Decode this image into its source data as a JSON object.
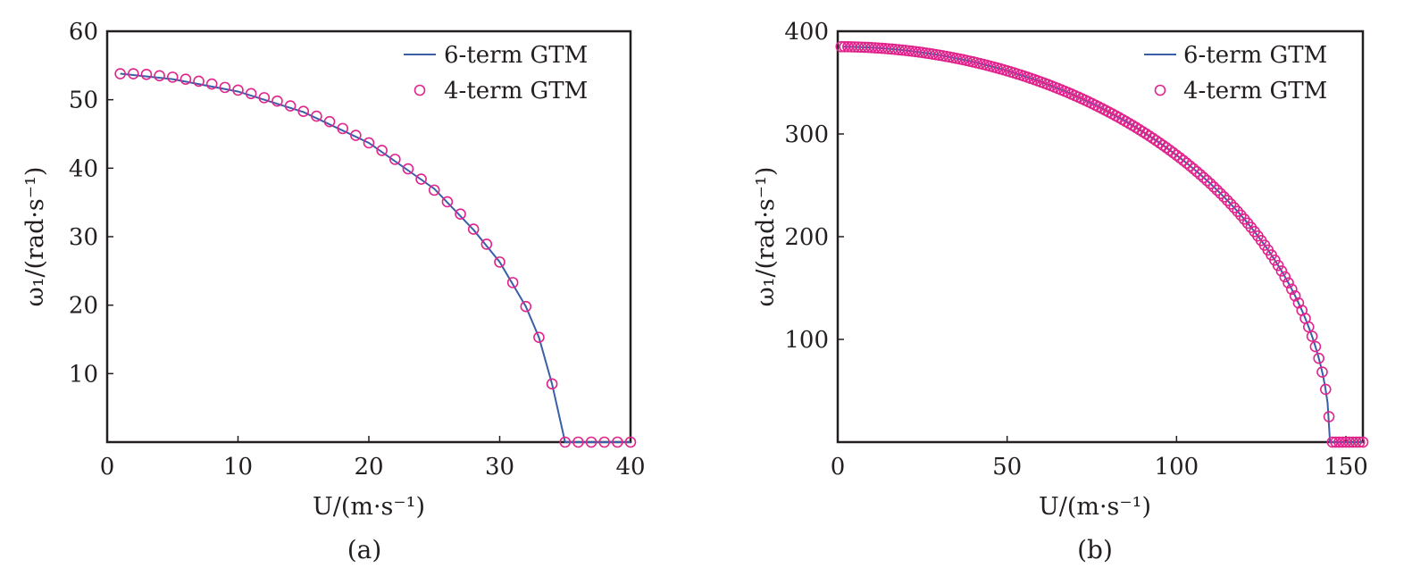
{
  "chart_data": [
    {
      "id": "a",
      "type": "line",
      "caption": "(a)",
      "xlabel": "U/(m·s⁻¹)",
      "ylabel": "ω₁/(rad·s⁻¹)",
      "xlim": [
        0,
        40
      ],
      "ylim": [
        0,
        60
      ],
      "xticks": [
        0,
        10,
        20,
        30,
        40
      ],
      "yticks": [
        10,
        20,
        30,
        40,
        50,
        60
      ],
      "legend_position": "top-right",
      "series": [
        {
          "name": "6-term GTM",
          "style": "line",
          "color": "#3a5fa8",
          "x": [
            1,
            5,
            10,
            15,
            20,
            25,
            28,
            30,
            32,
            33,
            34,
            35,
            40
          ],
          "y": [
            53.8,
            53.0,
            51.2,
            48.2,
            43.7,
            37.0,
            31.0,
            26.3,
            19.8,
            15.3,
            8.5,
            0,
            0
          ]
        },
        {
          "name": "4-term GTM",
          "style": "markers",
          "color": "#e0248c",
          "x": [
            1,
            2,
            3,
            4,
            5,
            6,
            7,
            8,
            9,
            10,
            11,
            12,
            13,
            14,
            15,
            16,
            17,
            18,
            19,
            20,
            21,
            22,
            23,
            24,
            25,
            26,
            27,
            28,
            29,
            30,
            31,
            32,
            33,
            34,
            35,
            36,
            37,
            38,
            39,
            40
          ],
          "y": [
            53.8,
            53.8,
            53.7,
            53.5,
            53.3,
            53.0,
            52.7,
            52.3,
            51.8,
            51.4,
            50.9,
            50.3,
            49.8,
            49.1,
            48.3,
            47.6,
            46.8,
            45.8,
            44.8,
            43.7,
            42.6,
            41.3,
            39.9,
            38.4,
            36.8,
            35.1,
            33.3,
            31.1,
            28.9,
            26.3,
            23.3,
            19.8,
            15.3,
            8.5,
            0,
            0,
            0,
            0,
            0,
            0
          ]
        }
      ]
    },
    {
      "id": "b",
      "type": "line",
      "caption": "(b)",
      "xlabel": "U/(m·s⁻¹)",
      "ylabel": "ω₁/(rad·s⁻¹)",
      "xlim": [
        0,
        155
      ],
      "ylim": [
        0,
        400
      ],
      "xticks": [
        0,
        50,
        100,
        150
      ],
      "yticks": [
        100,
        200,
        300,
        400
      ],
      "legend_position": "top-right",
      "series": [
        {
          "name": "6-term GTM",
          "style": "line",
          "color": "#3a5fa8",
          "curve": {
            "y0": 385,
            "x_critical": 145.3,
            "x_max": 155
          }
        },
        {
          "name": "4-term GTM",
          "style": "markers",
          "color": "#e0248c",
          "curve": {
            "y0": 385,
            "x_start": 1,
            "x_step": 1,
            "x_critical": 145.3,
            "x_max": 155
          }
        }
      ]
    }
  ]
}
